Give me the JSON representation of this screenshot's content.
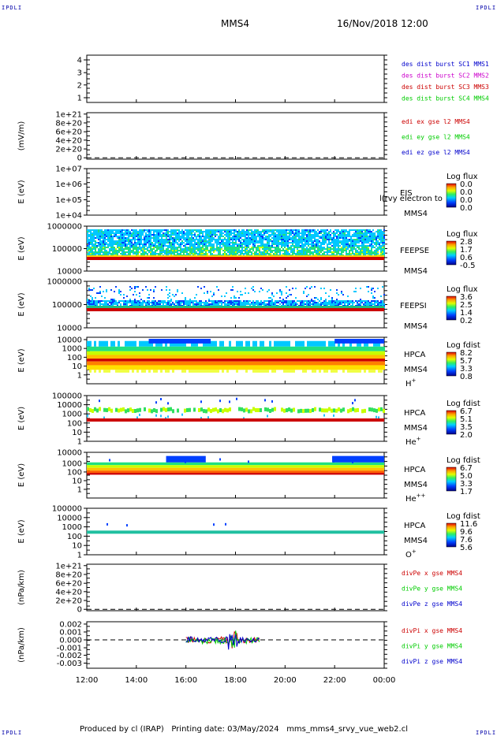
{
  "header": {
    "corner_tl": "IPDLI",
    "corner_tr": "IPDLI",
    "corner_bl": "IPDLI",
    "corner_br": "IPDLI",
    "spacecraft": "MMS4",
    "datetime": "16/Nov/2018 12:00"
  },
  "footer": {
    "text": "Produced by cl (IRAP)   Printing date: 03/May/2024   mms_mms4_srvy_vue_web2.cl"
  },
  "colors": {
    "red": "#cc0000",
    "magenta": "#cc00cc",
    "green": "#00cc00",
    "blue": "#0000cc",
    "teal": "#20c0a0"
  },
  "chart_data": [
    {
      "type": "line",
      "panel": "spacecraft-ephemeris",
      "ylabel": "",
      "yticks": [
        "4",
        "3",
        "2",
        "1"
      ],
      "ylim": [
        0.6,
        4.4
      ],
      "legend": [
        {
          "text": "des dist burst SC1 MMS1",
          "color": "#0000cc"
        },
        {
          "text": "des dist burst SC2 MMS2",
          "color": "#cc00cc"
        },
        {
          "text": "des dist burst SC3 MMS3",
          "color": "#cc0000"
        },
        {
          "text": "des dist burst SC4 MMS4",
          "color": "#00cc00"
        }
      ]
    },
    {
      "type": "line",
      "panel": "edi-electric-field",
      "ylabel": "(mV/m)",
      "yticks": [
        "1e+21",
        "8e+20",
        "6e+20",
        "4e+20",
        "2e+20",
        "0"
      ],
      "dashed_zero": true,
      "legend": [
        {
          "text": "edi ex gse l2 MMS4",
          "color": "#cc0000"
        },
        {
          "text": "edi ey gse l2 MMS4",
          "color": "#00cc00"
        },
        {
          "text": "edi ez gse l2 MMS4",
          "color": "#0000cc"
        }
      ]
    },
    {
      "type": "heatmap",
      "panel": "eis",
      "ylabel": "E (eV)",
      "yticks": [
        "1e+07",
        "1e+06",
        "1e+05",
        "1e+04"
      ],
      "scale": "log",
      "instrument": "EIS",
      "spacecraft": "MMS4",
      "overlay_text": "l(rvy electron to",
      "colorbar_title": "Log flux",
      "colorbar_ticks": [
        "0.0",
        "0.0",
        "0.0",
        "0.0"
      ]
    },
    {
      "type": "heatmap",
      "panel": "feeps-electrons",
      "ylabel": "E (eV)",
      "yticks": [
        "1000000",
        "100000",
        "10000"
      ],
      "scale": "log",
      "instrument": "FEEPSE",
      "spacecraft": "MMS4",
      "colorbar_title": "Log flux",
      "colorbar_ticks": [
        "2.8",
        "1.7",
        "0.6",
        "-0.5"
      ]
    },
    {
      "type": "heatmap",
      "panel": "feeps-ions",
      "ylabel": "E (eV)",
      "yticks": [
        "1000000",
        "100000",
        "10000"
      ],
      "scale": "log",
      "instrument": "FEEPSI",
      "spacecraft": "MMS4",
      "colorbar_title": "Log flux",
      "colorbar_ticks": [
        "3.6",
        "2.5",
        "1.4",
        "0.2"
      ]
    },
    {
      "type": "heatmap",
      "panel": "hpca-hplus",
      "ylabel": "E (eV)",
      "yticks": [
        "10000",
        "1000",
        "100",
        "10",
        "1"
      ],
      "scale": "log",
      "instrument": "HPCA",
      "spacecraft": "MMS4",
      "species": "H",
      "species_charge": "+",
      "colorbar_title": "Log fdist",
      "colorbar_ticks": [
        "8.2",
        "5.7",
        "3.3",
        "0.8"
      ]
    },
    {
      "type": "heatmap",
      "panel": "hpca-heplus",
      "ylabel": "E (eV)",
      "yticks": [
        "100000",
        "10000",
        "1000",
        "100",
        "10",
        "1"
      ],
      "scale": "log",
      "instrument": "HPCA",
      "spacecraft": "MMS4",
      "species": "He",
      "species_charge": "+",
      "colorbar_title": "Log fdist",
      "colorbar_ticks": [
        "6.7",
        "5.1",
        "3.5",
        "2.0"
      ]
    },
    {
      "type": "heatmap",
      "panel": "hpca-heplusplus",
      "ylabel": "E (eV)",
      "yticks": [
        "10000",
        "1000",
        "100",
        "10",
        "1"
      ],
      "scale": "log",
      "instrument": "HPCA",
      "spacecraft": "MMS4",
      "species": "He",
      "species_charge": "++",
      "colorbar_title": "Log fdist",
      "colorbar_ticks": [
        "6.7",
        "5.0",
        "3.3",
        "1.7"
      ]
    },
    {
      "type": "heatmap",
      "panel": "hpca-oplus",
      "ylabel": "E (eV)",
      "yticks": [
        "100000",
        "10000",
        "1000",
        "100",
        "10",
        "1"
      ],
      "scale": "log",
      "instrument": "HPCA",
      "spacecraft": "MMS4",
      "species": "O",
      "species_charge": "+",
      "colorbar_title": "Log fdist",
      "colorbar_ticks": [
        "11.6",
        "9.6",
        "7.6",
        "5.6"
      ]
    },
    {
      "type": "line",
      "panel": "divpe",
      "ylabel": "(nPa/km)",
      "yticks": [
        "1e+21",
        "8e+20",
        "6e+20",
        "4e+20",
        "2e+20",
        "0"
      ],
      "dashed_zero": true,
      "legend": [
        {
          "text": "divPe x gse MMS4",
          "color": "#cc0000"
        },
        {
          "text": "divPe y gse MMS4",
          "color": "#00cc00"
        },
        {
          "text": "divPe z gse MMS4",
          "color": "#0000cc"
        }
      ]
    },
    {
      "type": "line",
      "panel": "divpi",
      "ylabel": "(nPa/km)",
      "yticks": [
        "0.002",
        "0.001",
        "0.000",
        "-0.001",
        "-0.002",
        "-0.003"
      ],
      "ylim": [
        -0.0033,
        0.0022
      ],
      "dashed_zero": true,
      "data_span": [
        "16:00",
        "19:00"
      ],
      "legend": [
        {
          "text": "divPi x gse MMS4",
          "color": "#cc0000"
        },
        {
          "text": "divPi y gse MMS4",
          "color": "#00cc00"
        },
        {
          "text": "divPi z gse MMS4",
          "color": "#0000cc"
        }
      ]
    }
  ],
  "time_axis": {
    "labels": [
      "12:00",
      "14:00",
      "16:00",
      "18:00",
      "20:00",
      "22:00",
      "00:00"
    ],
    "range_hours": [
      12,
      24
    ]
  }
}
